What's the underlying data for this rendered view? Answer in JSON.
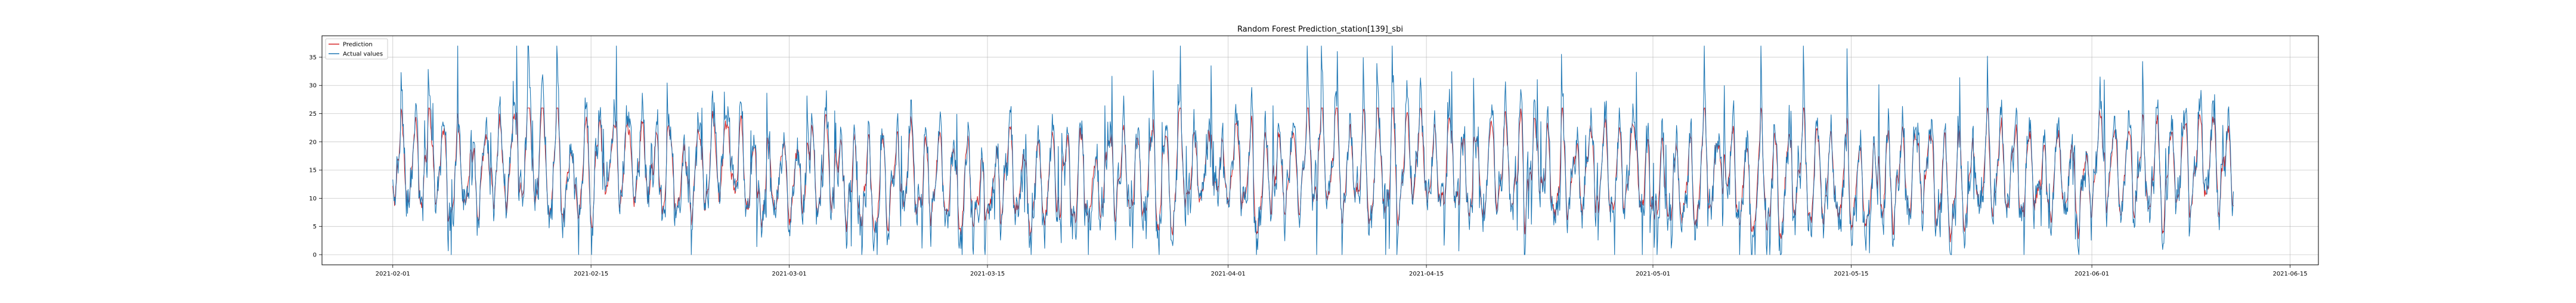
{
  "chart_data": {
    "type": "line",
    "title": "Random Forest Prediction_station[139]_sbi",
    "xlabel": "",
    "ylabel": "",
    "x_range": [
      "2021-01-27",
      "2021-06-17"
    ],
    "ylim": [
      -1.8,
      38.8
    ],
    "grid": true,
    "legend_position": "upper left",
    "x_tick_labels": [
      "2021-02-01",
      "2021-02-15",
      "2021-03-01",
      "2021-03-15",
      "2021-04-01",
      "2021-04-15",
      "2021-05-01",
      "2021-05-15",
      "2021-06-01",
      "2021-06-15"
    ],
    "y_ticks": [
      0,
      5,
      10,
      15,
      20,
      25,
      30,
      35
    ],
    "time_start": "2021-02-01 00:00",
    "time_end": "2021-06-11 00:00",
    "sampling_interval_hours": 1,
    "series": [
      {
        "name": "Prediction",
        "color": "#d62728",
        "summary": "hourly model prediction; smoothed pattern in the 2-25 range, mean near 14"
      },
      {
        "name": "Actual values",
        "color": "#1f77b4",
        "summary": "hourly observed bike availability; strong daily oscillation between 0 and about 37, mean near 14"
      }
    ],
    "legend": [
      "Prediction",
      "Actual values"
    ]
  }
}
